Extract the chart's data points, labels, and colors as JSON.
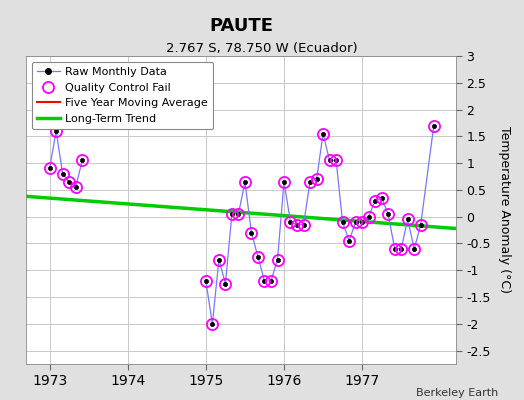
{
  "title": "PAUTE",
  "subtitle": "2.767 S, 78.750 W (Ecuador)",
  "ylabel": "Temperature Anomaly (°C)",
  "credit": "Berkeley Earth",
  "ylim": [
    -2.75,
    3.0
  ],
  "yticks": [
    -2.5,
    -2.0,
    -1.5,
    -1.0,
    -0.5,
    0.0,
    0.5,
    1.0,
    1.5,
    2.0,
    2.5,
    3.0
  ],
  "xlim": [
    1972.7,
    1978.2
  ],
  "xticks": [
    1973,
    1974,
    1975,
    1976,
    1977
  ],
  "bg_color": "#e0e0e0",
  "plot_bg": "#ffffff",
  "grid_color": "#c0c0c0",
  "raw_line_color": "#7777ff",
  "raw_marker_color": "#000000",
  "qc_marker_color": "#ff00ff",
  "moving_avg_color": "#ff0000",
  "trend_color": "#00cc00",
  "raw_segments": [
    {
      "x": [
        1973.0,
        1973.083,
        1973.167,
        1973.25,
        1973.333,
        1973.417
      ],
      "y": [
        0.9,
        1.6,
        0.8,
        0.65,
        0.55,
        1.05
      ]
    },
    {
      "x": [
        1975.0,
        1975.083,
        1975.167,
        1975.25,
        1975.333,
        1975.417,
        1975.5,
        1975.583,
        1975.667,
        1975.75,
        1975.833,
        1975.917,
        1976.0,
        1976.083,
        1976.167,
        1976.25,
        1976.333,
        1976.417,
        1976.5,
        1976.583,
        1976.667,
        1976.75,
        1976.833,
        1976.917,
        1977.0,
        1977.083,
        1977.167,
        1977.25,
        1977.333,
        1977.417,
        1977.5,
        1977.583,
        1977.667,
        1977.75,
        1977.917
      ],
      "y": [
        -1.2,
        -2.0,
        -0.8,
        -1.25,
        0.05,
        0.05,
        0.65,
        -0.3,
        -0.75,
        -1.2,
        -1.2,
        -0.8,
        0.65,
        -0.1,
        -0.15,
        -0.15,
        0.65,
        0.7,
        1.55,
        1.05,
        1.05,
        -0.1,
        -0.45,
        -0.1,
        -0.1,
        0.0,
        0.3,
        0.35,
        0.05,
        -0.6,
        -0.6,
        -0.05,
        -0.6,
        -0.15,
        1.7
      ]
    }
  ],
  "qc_x": [
    1973.0,
    1973.083,
    1973.167,
    1973.25,
    1973.333,
    1973.417,
    1975.0,
    1975.083,
    1975.167,
    1975.25,
    1975.333,
    1975.417,
    1975.5,
    1975.583,
    1975.667,
    1975.75,
    1975.833,
    1975.917,
    1976.0,
    1976.083,
    1976.167,
    1976.25,
    1976.333,
    1976.417,
    1976.5,
    1976.583,
    1976.667,
    1976.75,
    1976.833,
    1976.917,
    1977.0,
    1977.083,
    1977.167,
    1977.25,
    1977.333,
    1977.417,
    1977.5,
    1977.583,
    1977.667,
    1977.75,
    1977.917
  ],
  "qc_y": [
    0.9,
    1.6,
    0.8,
    0.65,
    0.55,
    1.05,
    -1.2,
    -2.0,
    -0.8,
    -1.25,
    0.05,
    0.05,
    0.65,
    -0.3,
    -0.75,
    -1.2,
    -1.2,
    -0.8,
    0.65,
    -0.1,
    -0.15,
    -0.15,
    0.65,
    0.7,
    1.55,
    1.05,
    1.05,
    -0.1,
    -0.45,
    -0.1,
    -0.1,
    0.0,
    0.3,
    0.35,
    0.05,
    -0.6,
    -0.6,
    -0.05,
    -0.6,
    -0.15,
    1.7
  ],
  "trend_x": [
    1972.7,
    1978.2
  ],
  "trend_y": [
    0.38,
    -0.22
  ],
  "legend_labels": [
    "Raw Monthly Data",
    "Quality Control Fail",
    "Five Year Moving Average",
    "Long-Term Trend"
  ]
}
